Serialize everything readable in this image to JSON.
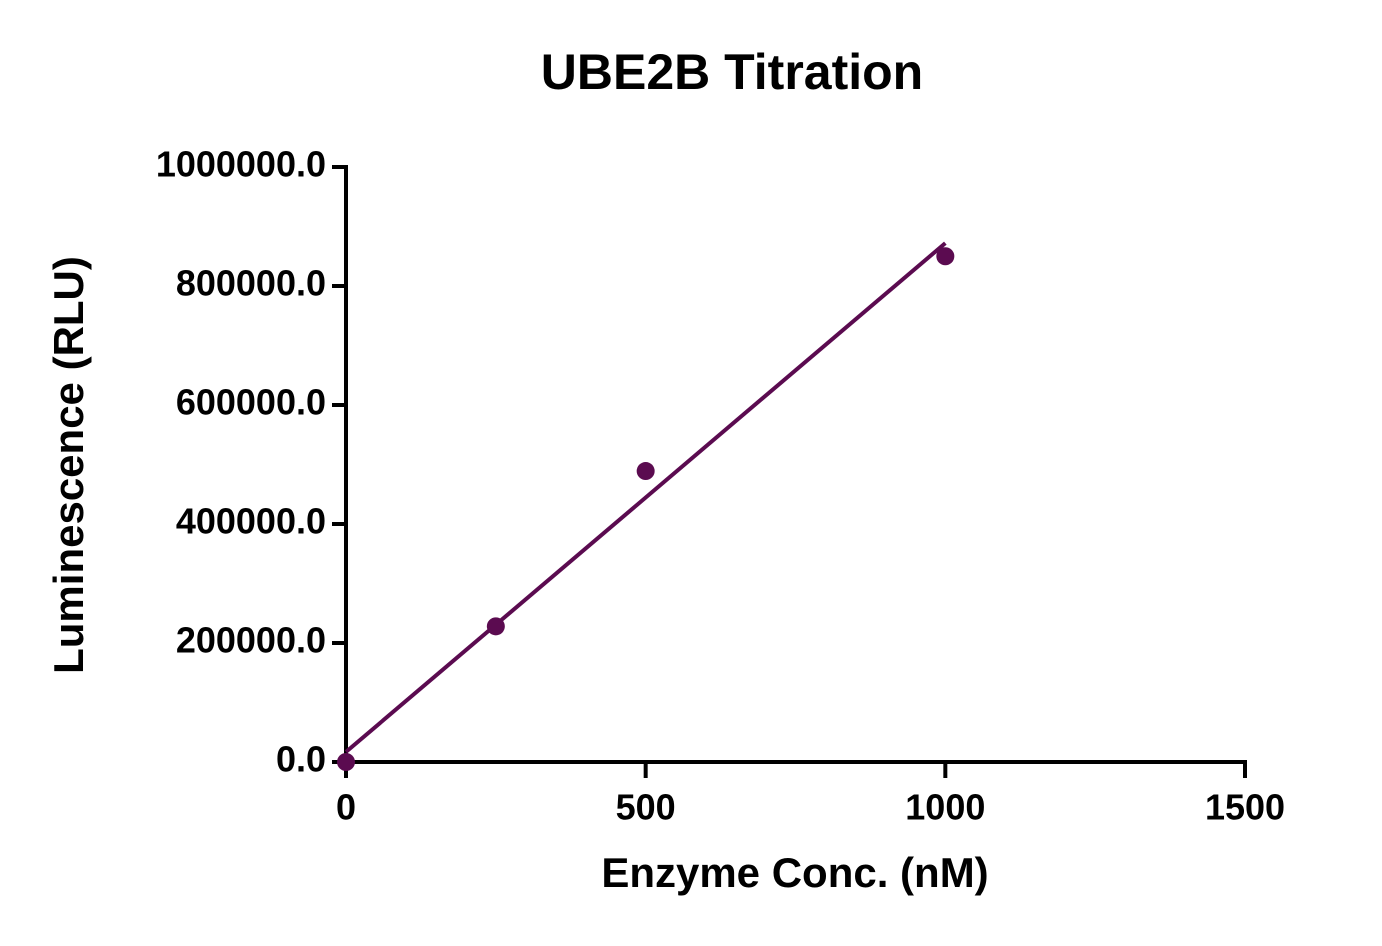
{
  "chart_data": {
    "type": "scatter",
    "title": "UBE2B Titration",
    "x_label": "Enzyme Conc. (nM)",
    "y_label": "Luminescence (RLU)",
    "x": [
      0,
      250,
      500,
      1000
    ],
    "values": [
      0,
      228000,
      489000,
      850000
    ],
    "fit": {
      "x": [
        0,
        1000
      ],
      "values": [
        17000,
        872000
      ]
    },
    "color": "#5b0b50",
    "xlim": [
      0,
      1500
    ],
    "xticks": [
      0,
      500,
      1000,
      1500
    ],
    "ylim": [
      0,
      1000000
    ],
    "yticks": [
      {
        "value": 0,
        "label": "0.0"
      },
      {
        "value": 200000,
        "label": "200000.0"
      },
      {
        "value": 400000,
        "label": "400000.0"
      },
      {
        "value": 600000,
        "label": "600000.0"
      },
      {
        "value": 800000,
        "label": "800000.0"
      },
      {
        "value": 1000000,
        "label": "1000000.0"
      }
    ],
    "grid": false
  }
}
